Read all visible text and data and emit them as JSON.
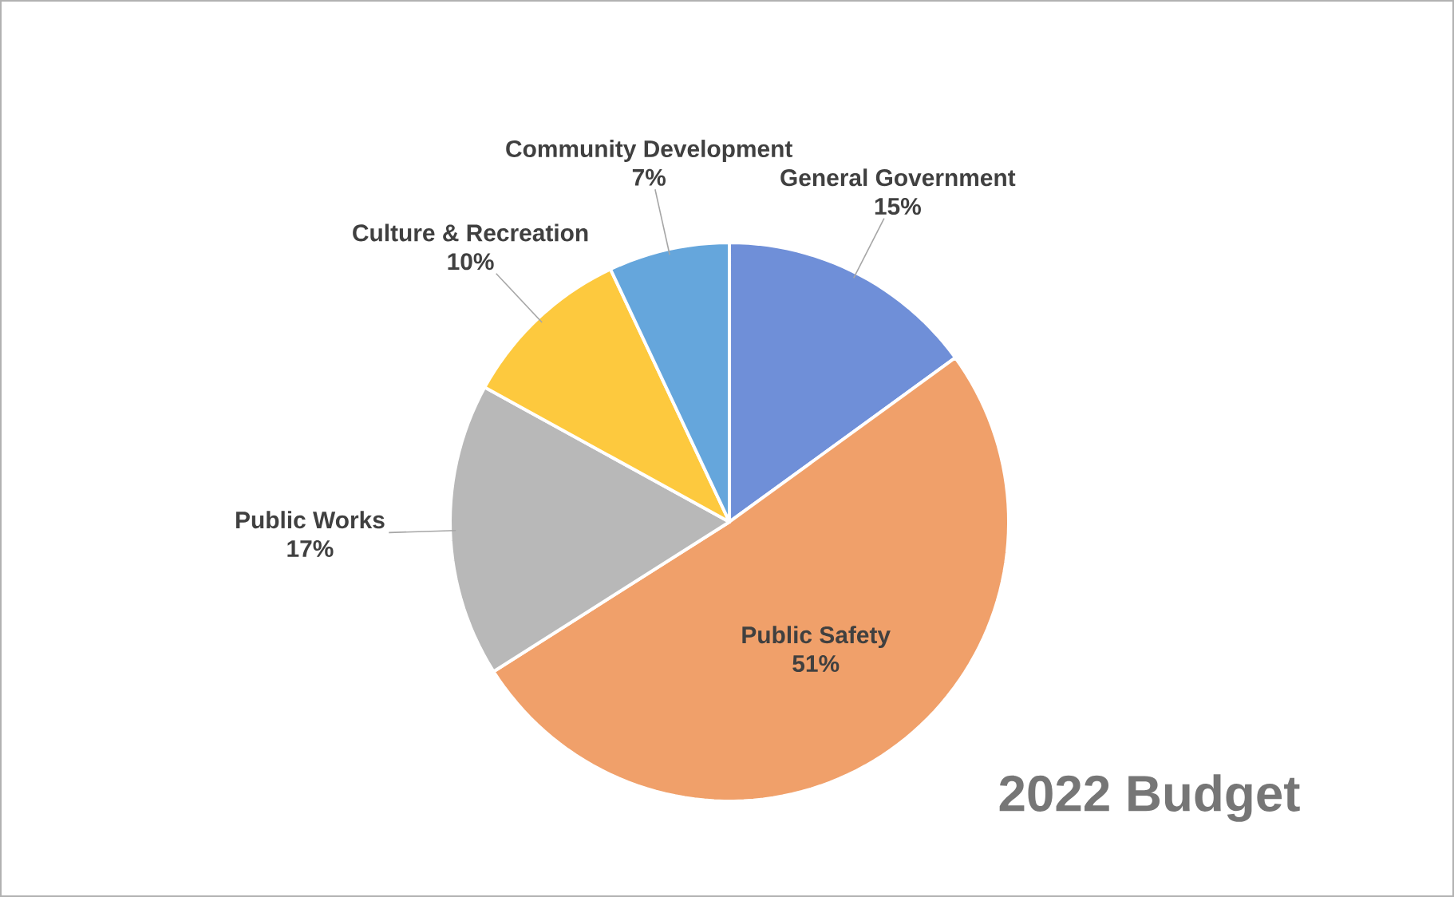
{
  "chart_data": {
    "type": "pie",
    "title": "2022 Budget",
    "categories": [
      "General Government",
      "Public Safety",
      "Public Works",
      "Culture & Recreation",
      "Community Development"
    ],
    "values": [
      15,
      51,
      17,
      10,
      7
    ],
    "value_labels": [
      "15%",
      "51%",
      "17%",
      "10%",
      "7%"
    ],
    "colors": [
      "#6f8fd8",
      "#f0a06a",
      "#b8b8b8",
      "#fdc93e",
      "#65a6dc"
    ]
  }
}
